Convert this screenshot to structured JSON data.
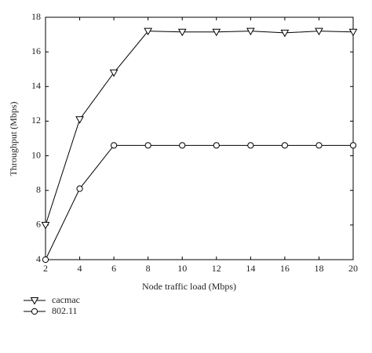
{
  "chart_data": {
    "type": "line",
    "xlabel": "Node traffic load (Mbps)",
    "ylabel": "Throughput (Mbps)",
    "x": [
      2,
      4,
      6,
      8,
      10,
      12,
      14,
      16,
      18,
      20
    ],
    "series": [
      {
        "name": "cacmac",
        "color": "#000000",
        "marker": "triangle-down",
        "values": [
          6.0,
          12.1,
          14.8,
          17.2,
          17.15,
          17.15,
          17.2,
          17.1,
          17.2,
          17.15
        ]
      },
      {
        "name": "802.11",
        "color": "#000000",
        "marker": "circle",
        "values": [
          4.0,
          8.1,
          10.6,
          10.6,
          10.6,
          10.6,
          10.6,
          10.6,
          10.6,
          10.6
        ]
      }
    ],
    "xlim": [
      2,
      20
    ],
    "xticks": [
      2,
      4,
      6,
      8,
      10,
      12,
      14,
      16,
      18,
      20
    ],
    "ylim": [
      4,
      18
    ],
    "yticks": [
      4,
      6,
      8,
      10,
      12,
      14,
      16,
      18
    ],
    "grid": false,
    "legend": "bottom-left"
  }
}
